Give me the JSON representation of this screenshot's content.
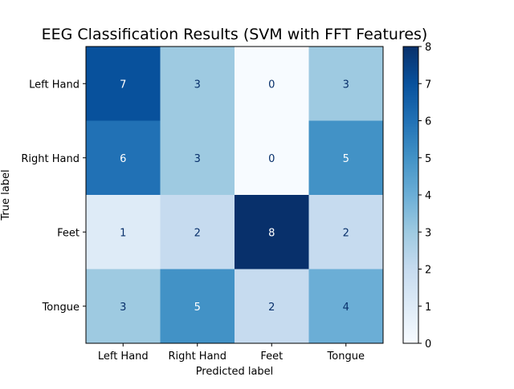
{
  "chart_data": {
    "type": "heatmap",
    "title": "EEG Classification Results (SVM with FFT Features)",
    "xlabel": "Predicted label",
    "ylabel": "True label",
    "x_categories": [
      "Left Hand",
      "Right Hand",
      "Feet",
      "Tongue"
    ],
    "y_categories": [
      "Left Hand",
      "Right Hand",
      "Feet",
      "Tongue"
    ],
    "values": [
      [
        7,
        3,
        0,
        3
      ],
      [
        6,
        3,
        0,
        5
      ],
      [
        1,
        2,
        8,
        2
      ],
      [
        3,
        5,
        2,
        4
      ]
    ],
    "colormap": "Blues",
    "vmin": 0,
    "vmax": 8,
    "colorbar_ticks": [
      "0",
      "1",
      "2",
      "3",
      "4",
      "5",
      "6",
      "7",
      "8"
    ],
    "grid": false,
    "colorbar": "right"
  }
}
